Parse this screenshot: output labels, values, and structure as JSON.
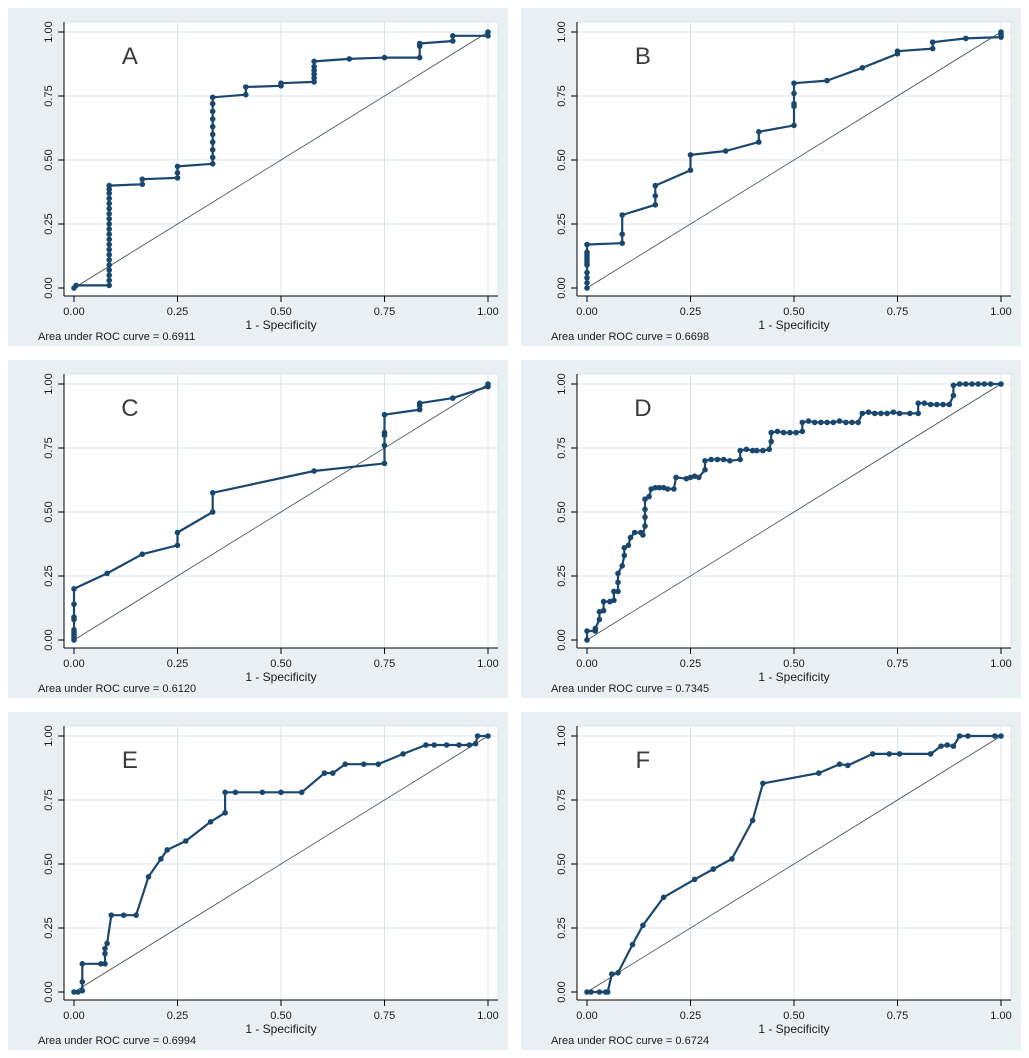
{
  "figure": {
    "xlabel": "1 - Specificity",
    "tick_values": [
      0,
      0.25,
      0.5,
      0.75,
      1.0
    ],
    "x_tick_labels": [
      "0.00",
      "0.25",
      "0.50",
      "0.75",
      "1.00"
    ],
    "y_tick_labels": [
      "0.00",
      "0.25",
      "0.50",
      "0.75",
      "1.00"
    ],
    "xlim": [
      0,
      1
    ],
    "ylim": [
      0,
      1
    ],
    "grid": true,
    "reference_line": {
      "from": [
        0,
        0
      ],
      "to": [
        1,
        1
      ]
    }
  },
  "colors": {
    "page_background": "#ffffff",
    "panel_background": "#e8f0f3",
    "plot_background": "#ffffff",
    "gridline": "#d8e5eb",
    "axis": "#000000",
    "tick_text": "#1a1a1a",
    "curve": "#1a476f",
    "reference": "#37474f",
    "panel_letter": "#3c3c3c"
  },
  "chart_data": [
    {
      "type": "line",
      "panel_label": "A",
      "auc_value": 0.6911,
      "auc_text": "Area under ROC curve = 0.6911",
      "roc_points": [
        [
          0,
          0
        ],
        [
          0.005,
          0.01
        ],
        [
          0.085,
          0.01
        ],
        [
          0.085,
          0.03
        ],
        [
          0.085,
          0.05
        ],
        [
          0.085,
          0.07
        ],
        [
          0.085,
          0.09
        ],
        [
          0.085,
          0.11
        ],
        [
          0.085,
          0.13
        ],
        [
          0.085,
          0.15
        ],
        [
          0.085,
          0.17
        ],
        [
          0.085,
          0.19
        ],
        [
          0.085,
          0.21
        ],
        [
          0.085,
          0.23
        ],
        [
          0.085,
          0.25
        ],
        [
          0.085,
          0.27
        ],
        [
          0.085,
          0.29
        ],
        [
          0.085,
          0.31
        ],
        [
          0.085,
          0.33
        ],
        [
          0.085,
          0.35
        ],
        [
          0.085,
          0.37
        ],
        [
          0.085,
          0.385
        ],
        [
          0.085,
          0.4
        ],
        [
          0.165,
          0.405
        ],
        [
          0.165,
          0.425
        ],
        [
          0.25,
          0.43
        ],
        [
          0.25,
          0.45
        ],
        [
          0.25,
          0.475
        ],
        [
          0.335,
          0.485
        ],
        [
          0.335,
          0.51
        ],
        [
          0.335,
          0.54
        ],
        [
          0.335,
          0.57
        ],
        [
          0.335,
          0.6
        ],
        [
          0.335,
          0.63
        ],
        [
          0.335,
          0.66
        ],
        [
          0.335,
          0.69
        ],
        [
          0.335,
          0.72
        ],
        [
          0.335,
          0.745
        ],
        [
          0.415,
          0.755
        ],
        [
          0.415,
          0.785
        ],
        [
          0.5,
          0.79
        ],
        [
          0.5,
          0.8
        ],
        [
          0.58,
          0.805
        ],
        [
          0.58,
          0.82
        ],
        [
          0.58,
          0.835
        ],
        [
          0.58,
          0.85
        ],
        [
          0.58,
          0.865
        ],
        [
          0.58,
          0.885
        ],
        [
          0.665,
          0.895
        ],
        [
          0.75,
          0.9
        ],
        [
          0.835,
          0.9
        ],
        [
          0.835,
          0.945
        ],
        [
          0.835,
          0.955
        ],
        [
          0.915,
          0.965
        ],
        [
          0.915,
          0.985
        ],
        [
          1,
          0.985
        ],
        [
          1,
          1
        ]
      ]
    },
    {
      "type": "line",
      "panel_label": "B",
      "auc_value": 0.6698,
      "auc_text": "Area under ROC curve = 0.6698",
      "roc_points": [
        [
          0,
          0
        ],
        [
          0,
          0.02
        ],
        [
          0,
          0.04
        ],
        [
          0,
          0.06
        ],
        [
          0,
          0.09
        ],
        [
          0,
          0.1
        ],
        [
          0,
          0.11
        ],
        [
          0,
          0.12
        ],
        [
          0,
          0.13
        ],
        [
          0,
          0.14
        ],
        [
          0,
          0.17
        ],
        [
          0.085,
          0.175
        ],
        [
          0.085,
          0.21
        ],
        [
          0.085,
          0.285
        ],
        [
          0.165,
          0.325
        ],
        [
          0.165,
          0.36
        ],
        [
          0.165,
          0.4
        ],
        [
          0.25,
          0.46
        ],
        [
          0.25,
          0.52
        ],
        [
          0.335,
          0.535
        ],
        [
          0.415,
          0.57
        ],
        [
          0.415,
          0.61
        ],
        [
          0.5,
          0.635
        ],
        [
          0.5,
          0.71
        ],
        [
          0.5,
          0.72
        ],
        [
          0.5,
          0.76
        ],
        [
          0.5,
          0.8
        ],
        [
          0.58,
          0.81
        ],
        [
          0.665,
          0.86
        ],
        [
          0.75,
          0.915
        ],
        [
          0.75,
          0.925
        ],
        [
          0.835,
          0.935
        ],
        [
          0.835,
          0.96
        ],
        [
          0.915,
          0.975
        ],
        [
          1,
          0.98
        ],
        [
          1,
          0.99
        ],
        [
          1,
          1
        ]
      ]
    },
    {
      "type": "line",
      "panel_label": "C",
      "auc_value": 0.612,
      "auc_text": "Area under ROC curve = 0.6120",
      "roc_points": [
        [
          0,
          0
        ],
        [
          0,
          0.01
        ],
        [
          0,
          0.02
        ],
        [
          0,
          0.03
        ],
        [
          0,
          0.04
        ],
        [
          0,
          0.08
        ],
        [
          0,
          0.09
        ],
        [
          0,
          0.14
        ],
        [
          0,
          0.2
        ],
        [
          0.08,
          0.26
        ],
        [
          0.165,
          0.335
        ],
        [
          0.25,
          0.37
        ],
        [
          0.25,
          0.42
        ],
        [
          0.335,
          0.5
        ],
        [
          0.335,
          0.575
        ],
        [
          0.58,
          0.66
        ],
        [
          0.75,
          0.69
        ],
        [
          0.75,
          0.76
        ],
        [
          0.75,
          0.8
        ],
        [
          0.75,
          0.81
        ],
        [
          0.75,
          0.88
        ],
        [
          0.835,
          0.9
        ],
        [
          0.835,
          0.915
        ],
        [
          0.835,
          0.925
        ],
        [
          0.915,
          0.945
        ],
        [
          1,
          0.99
        ],
        [
          1,
          1
        ]
      ]
    },
    {
      "type": "line",
      "panel_label": "D",
      "auc_value": 0.7345,
      "auc_text": "Area under ROC curve = 0.7345",
      "roc_points": [
        [
          0,
          0
        ],
        [
          0,
          0.035
        ],
        [
          0.02,
          0.035
        ],
        [
          0.02,
          0.045
        ],
        [
          0.03,
          0.08
        ],
        [
          0.03,
          0.11
        ],
        [
          0.04,
          0.115
        ],
        [
          0.04,
          0.15
        ],
        [
          0.055,
          0.15
        ],
        [
          0.065,
          0.155
        ],
        [
          0.065,
          0.19
        ],
        [
          0.075,
          0.19
        ],
        [
          0.075,
          0.225
        ],
        [
          0.075,
          0.26
        ],
        [
          0.085,
          0.29
        ],
        [
          0.09,
          0.33
        ],
        [
          0.09,
          0.36
        ],
        [
          0.1,
          0.37
        ],
        [
          0.105,
          0.4
        ],
        [
          0.115,
          0.42
        ],
        [
          0.13,
          0.42
        ],
        [
          0.135,
          0.41
        ],
        [
          0.14,
          0.445
        ],
        [
          0.14,
          0.48
        ],
        [
          0.14,
          0.51
        ],
        [
          0.14,
          0.55
        ],
        [
          0.15,
          0.56
        ],
        [
          0.155,
          0.59
        ],
        [
          0.165,
          0.595
        ],
        [
          0.175,
          0.595
        ],
        [
          0.185,
          0.595
        ],
        [
          0.195,
          0.59
        ],
        [
          0.21,
          0.59
        ],
        [
          0.215,
          0.635
        ],
        [
          0.24,
          0.63
        ],
        [
          0.25,
          0.635
        ],
        [
          0.26,
          0.64
        ],
        [
          0.27,
          0.635
        ],
        [
          0.285,
          0.665
        ],
        [
          0.285,
          0.7
        ],
        [
          0.3,
          0.705
        ],
        [
          0.315,
          0.705
        ],
        [
          0.33,
          0.705
        ],
        [
          0.345,
          0.7
        ],
        [
          0.37,
          0.705
        ],
        [
          0.37,
          0.74
        ],
        [
          0.385,
          0.745
        ],
        [
          0.4,
          0.74
        ],
        [
          0.41,
          0.74
        ],
        [
          0.425,
          0.74
        ],
        [
          0.44,
          0.745
        ],
        [
          0.445,
          0.775
        ],
        [
          0.445,
          0.81
        ],
        [
          0.46,
          0.815
        ],
        [
          0.475,
          0.81
        ],
        [
          0.49,
          0.81
        ],
        [
          0.505,
          0.81
        ],
        [
          0.52,
          0.815
        ],
        [
          0.52,
          0.85
        ],
        [
          0.535,
          0.855
        ],
        [
          0.55,
          0.85
        ],
        [
          0.565,
          0.85
        ],
        [
          0.58,
          0.85
        ],
        [
          0.595,
          0.85
        ],
        [
          0.61,
          0.855
        ],
        [
          0.625,
          0.85
        ],
        [
          0.64,
          0.85
        ],
        [
          0.655,
          0.85
        ],
        [
          0.665,
          0.885
        ],
        [
          0.68,
          0.89
        ],
        [
          0.695,
          0.885
        ],
        [
          0.71,
          0.885
        ],
        [
          0.725,
          0.885
        ],
        [
          0.74,
          0.89
        ],
        [
          0.755,
          0.885
        ],
        [
          0.78,
          0.885
        ],
        [
          0.8,
          0.885
        ],
        [
          0.8,
          0.925
        ],
        [
          0.815,
          0.925
        ],
        [
          0.83,
          0.92
        ],
        [
          0.845,
          0.92
        ],
        [
          0.86,
          0.92
        ],
        [
          0.875,
          0.92
        ],
        [
          0.885,
          0.955
        ],
        [
          0.885,
          0.995
        ],
        [
          0.9,
          1
        ],
        [
          0.915,
          1
        ],
        [
          0.93,
          1
        ],
        [
          0.945,
          1
        ],
        [
          0.96,
          1
        ],
        [
          0.975,
          1
        ],
        [
          1,
          1
        ]
      ]
    },
    {
      "type": "line",
      "panel_label": "E",
      "auc_value": 0.6994,
      "auc_text": "Area under ROC curve = 0.6994",
      "roc_points": [
        [
          0,
          0
        ],
        [
          0.01,
          0
        ],
        [
          0.02,
          0.005
        ],
        [
          0.02,
          0.04
        ],
        [
          0.02,
          0.11
        ],
        [
          0.065,
          0.11
        ],
        [
          0.075,
          0.11
        ],
        [
          0.075,
          0.15
        ],
        [
          0.075,
          0.17
        ],
        [
          0.08,
          0.19
        ],
        [
          0.09,
          0.3
        ],
        [
          0.12,
          0.3
        ],
        [
          0.15,
          0.3
        ],
        [
          0.18,
          0.45
        ],
        [
          0.21,
          0.52
        ],
        [
          0.225,
          0.555
        ],
        [
          0.27,
          0.59
        ],
        [
          0.33,
          0.665
        ],
        [
          0.365,
          0.7
        ],
        [
          0.365,
          0.78
        ],
        [
          0.39,
          0.78
        ],
        [
          0.455,
          0.78
        ],
        [
          0.5,
          0.78
        ],
        [
          0.55,
          0.78
        ],
        [
          0.605,
          0.855
        ],
        [
          0.625,
          0.855
        ],
        [
          0.655,
          0.89
        ],
        [
          0.7,
          0.89
        ],
        [
          0.735,
          0.89
        ],
        [
          0.795,
          0.93
        ],
        [
          0.85,
          0.965
        ],
        [
          0.87,
          0.965
        ],
        [
          0.9,
          0.965
        ],
        [
          0.93,
          0.965
        ],
        [
          0.955,
          0.965
        ],
        [
          0.97,
          0.97
        ],
        [
          0.975,
          1
        ],
        [
          1,
          1
        ]
      ]
    },
    {
      "type": "line",
      "panel_label": "F",
      "auc_value": 0.6724,
      "auc_text": "Area under ROC curve = 0.6724",
      "roc_points": [
        [
          0,
          0
        ],
        [
          0.01,
          0
        ],
        [
          0.03,
          0
        ],
        [
          0.045,
          0
        ],
        [
          0.05,
          0
        ],
        [
          0.06,
          0.07
        ],
        [
          0.075,
          0.075
        ],
        [
          0.11,
          0.185
        ],
        [
          0.135,
          0.26
        ],
        [
          0.185,
          0.37
        ],
        [
          0.26,
          0.44
        ],
        [
          0.305,
          0.48
        ],
        [
          0.35,
          0.52
        ],
        [
          0.4,
          0.67
        ],
        [
          0.425,
          0.815
        ],
        [
          0.56,
          0.855
        ],
        [
          0.61,
          0.89
        ],
        [
          0.63,
          0.885
        ],
        [
          0.69,
          0.93
        ],
        [
          0.73,
          0.93
        ],
        [
          0.755,
          0.93
        ],
        [
          0.83,
          0.93
        ],
        [
          0.855,
          0.96
        ],
        [
          0.87,
          0.965
        ],
        [
          0.885,
          0.96
        ],
        [
          0.9,
          1
        ],
        [
          0.92,
          1
        ],
        [
          0.985,
          1
        ],
        [
          1,
          1
        ]
      ]
    }
  ]
}
